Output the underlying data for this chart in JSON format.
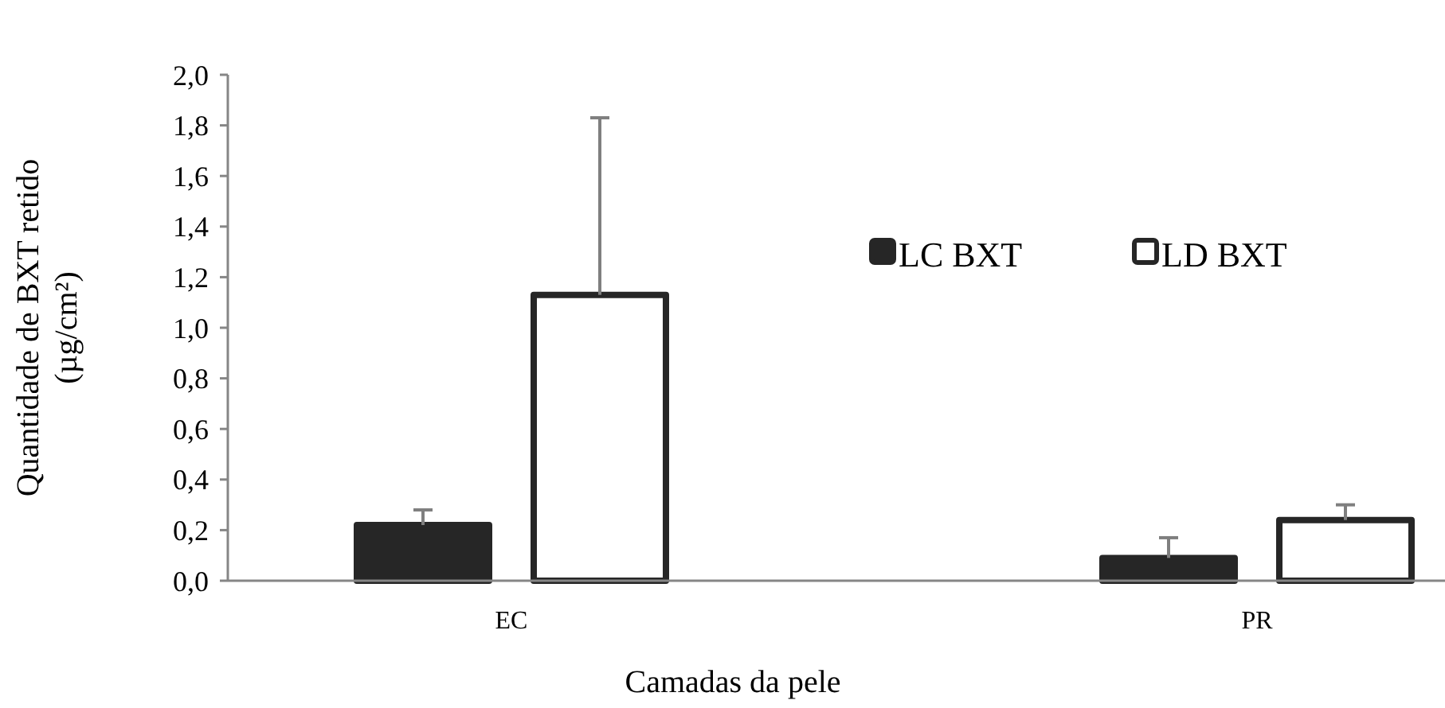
{
  "chart_data": {
    "type": "bar",
    "xlabel": "Camadas da pele",
    "ylabel": "Quantidade de BXT retido\n(µg/cm²)",
    "categories": [
      "EC",
      "PR"
    ],
    "series": [
      {
        "name": "LC BXT",
        "color": "#262626",
        "values": [
          0.22,
          0.09
        ],
        "errors": [
          0.06,
          0.08
        ]
      },
      {
        "name": "LD BXT",
        "color": "#ffffff",
        "values": [
          1.13,
          0.24
        ],
        "errors": [
          0.7,
          0.06
        ]
      }
    ],
    "ylim": [
      0,
      2
    ],
    "yticks": [
      {
        "value": 0,
        "label": "0,0"
      },
      {
        "value": 0.2,
        "label": "0,2"
      },
      {
        "value": 0.4,
        "label": "0,4"
      },
      {
        "value": 0.6,
        "label": "0,6"
      },
      {
        "value": 0.8,
        "label": "0,8"
      },
      {
        "value": 1,
        "label": "1,0"
      },
      {
        "value": 1.2,
        "label": "1,2"
      },
      {
        "value": 1.4,
        "label": "1,4"
      },
      {
        "value": 1.6,
        "label": "1,6"
      },
      {
        "value": 1.8,
        "label": "1,8"
      },
      {
        "value": 2,
        "label": "2,0"
      }
    ],
    "grid": false,
    "legend": "top right"
  }
}
